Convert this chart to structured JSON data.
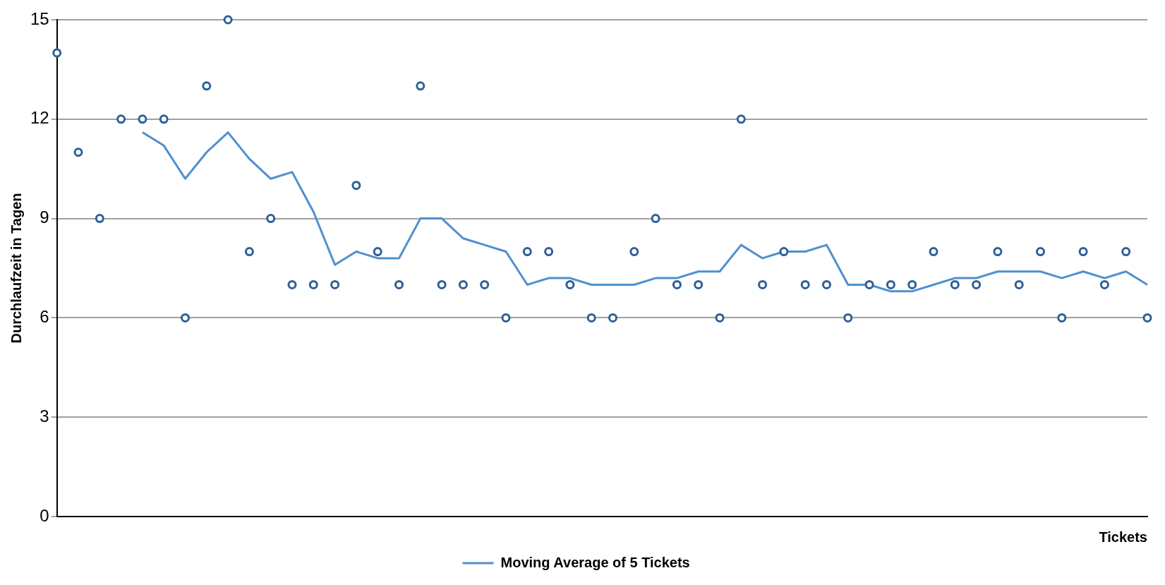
{
  "chart_data": {
    "type": "scatter",
    "ylabel": "Durchlaufzeit in Tagen",
    "xlabel": "Tickets",
    "categories": [
      null,
      null,
      null,
      null,
      null,
      null,
      null,
      null,
      null,
      null,
      null,
      null,
      null,
      null,
      null,
      null,
      null,
      null,
      null,
      null,
      null,
      null,
      null,
      null,
      null,
      null,
      null,
      null,
      null,
      null,
      null,
      null,
      null,
      null,
      null,
      null,
      null,
      null,
      null,
      null,
      null,
      null,
      null,
      null,
      null,
      null,
      null,
      null,
      null,
      null,
      null,
      null
    ],
    "series": [
      {
        "color": "#2f5f98",
        "marker": "circle",
        "values": [
          14,
          11,
          9,
          12,
          12,
          12,
          6,
          13,
          15,
          8,
          9,
          7,
          7,
          7,
          10,
          8,
          7,
          13,
          7,
          7,
          7,
          6,
          8,
          8,
          7,
          6,
          6,
          8,
          9,
          7,
          7,
          6,
          12,
          7,
          8,
          7,
          7,
          6,
          7,
          7,
          7,
          8,
          7,
          7,
          8,
          7,
          8,
          6,
          8,
          7,
          8,
          6
        ]
      },
      {
        "type": "line",
        "marker": "none",
        "name": "Moving Average of 5 Tickets",
        "color": "#4f8fd0",
        "values": [
          null,
          null,
          null,
          null,
          11.6,
          11.2,
          10.2,
          11,
          11.6,
          10.8,
          10.2,
          10.4,
          9.2,
          7.6,
          8,
          7.8,
          7.8,
          9,
          9,
          8.4,
          8.2,
          8,
          7,
          7.2,
          7.2,
          7,
          7,
          7,
          7.2,
          7.2,
          7.4,
          7.4,
          8.2,
          7.8,
          8,
          8,
          8.2,
          7,
          7,
          6.8,
          6.8,
          7,
          7.2,
          7.2,
          7.4,
          7.4,
          7.4,
          7.2,
          7.4,
          7.2,
          7.4,
          7
        ]
      }
    ],
    "ylim": [
      0,
      15
    ],
    "yticks": [
      0,
      3,
      6,
      9,
      12,
      15
    ],
    "grid": "y",
    "legend": "bottom",
    "line_style": "solid",
    "tick_labels": "y"
  }
}
